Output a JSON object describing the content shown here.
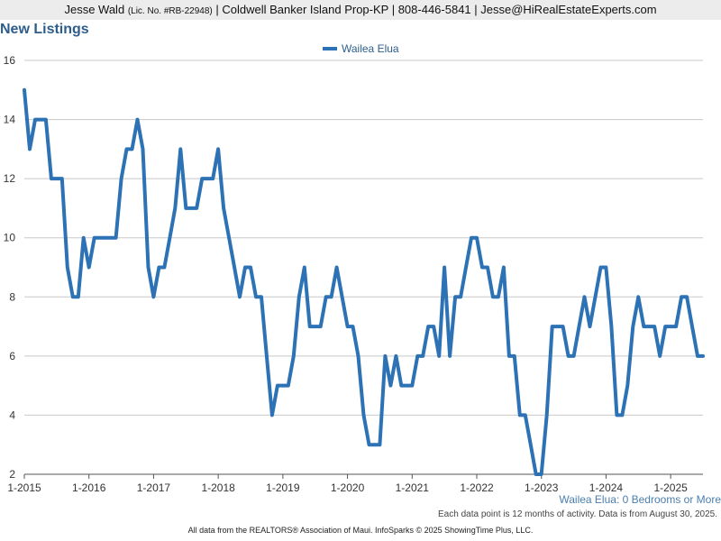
{
  "header": {
    "agent_name": "Jesse Wald",
    "license": "(Lic. No. #RB-22948)",
    "rest": " | Coldwell Banker Island Prop-KP | 808-446-5841 | Jesse@HiRealEstateExperts.com"
  },
  "title": "New Listings",
  "subset_note": "Wailea Elua: 0 Bedrooms or More",
  "activity_note": "Each data point is 12 months of activity. Data is from August 30, 2025.",
  "footer": "All data from the REALTORS® Association of Maui. InfoSparks © 2025 ShowingTime Plus, LLC.",
  "colors": {
    "series": "#2c72b5",
    "title": "#2d5d8a"
  },
  "chart_data": {
    "type": "line",
    "title": "New Listings",
    "legend_position": "top-center",
    "grid": true,
    "ylim": [
      2,
      16
    ],
    "yticks": [
      2,
      4,
      6,
      8,
      10,
      12,
      14,
      16
    ],
    "xticks": [
      "1-2015",
      "1-2016",
      "1-2017",
      "1-2018",
      "1-2019",
      "1-2020",
      "1-2021",
      "1-2022",
      "1-2023",
      "1-2024",
      "1-2025"
    ],
    "x_start": "2015-01",
    "x_end": "2025-08",
    "series": [
      {
        "name": "Wailea Elua",
        "values": [
          15,
          13,
          14,
          14,
          14,
          12,
          12,
          12,
          9,
          8,
          8,
          10,
          9,
          10,
          10,
          10,
          10,
          10,
          12,
          13,
          13,
          14,
          13,
          9,
          8,
          9,
          9,
          10,
          11,
          13,
          11,
          11,
          11,
          12,
          12,
          12,
          13,
          11,
          10,
          9,
          8,
          9,
          9,
          8,
          8,
          6,
          4,
          5,
          5,
          5,
          6,
          8,
          9,
          7,
          7,
          7,
          8,
          8,
          9,
          8,
          7,
          7,
          6,
          4,
          3,
          3,
          3,
          6,
          5,
          6,
          5,
          5,
          5,
          6,
          6,
          7,
          7,
          6,
          9,
          6,
          8,
          8,
          9,
          10,
          10,
          9,
          9,
          8,
          8,
          9,
          6,
          6,
          4,
          4,
          3,
          2,
          2,
          4,
          7,
          7,
          7,
          6,
          6,
          7,
          8,
          7,
          8,
          9,
          9,
          7,
          4,
          4,
          5,
          7,
          8,
          7,
          7,
          7,
          6,
          7,
          7,
          7,
          8,
          8,
          7,
          6,
          6
        ]
      }
    ]
  }
}
